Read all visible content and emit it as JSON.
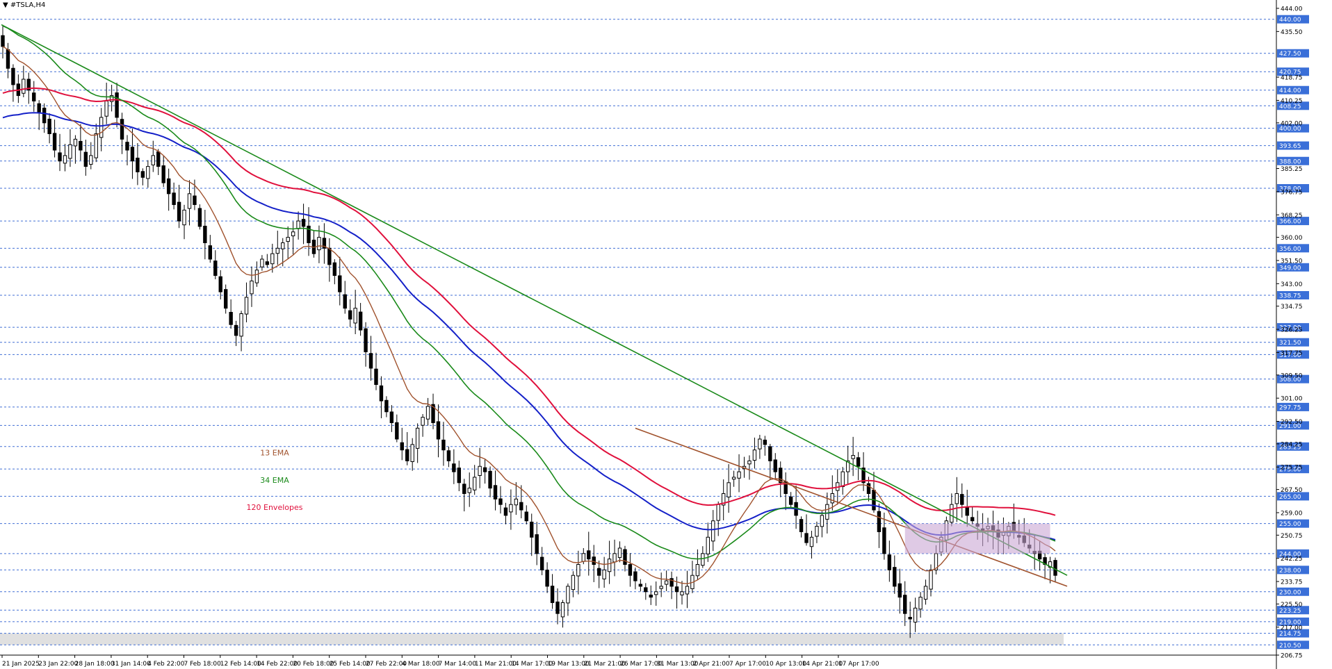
{
  "symbol_label": "#TSLA,H4",
  "colors": {
    "grid": "#2b5fd0",
    "price_tag_bg": "#3a6fd8",
    "ema13": "#a0522d",
    "ema34": "#1a8a1a",
    "envelope_upper": "#e0103c",
    "envelope_lower": "#1420c8",
    "trend_long": "#1a8a1a",
    "trend_short": "#a0522d",
    "zone_fill": "#c9a6d4",
    "bottom_band": "#d8d8d8"
  },
  "chart_data": {
    "type": "candlestick",
    "ylim": [
      206.75,
      444.0
    ],
    "price_tags": [
      440.0,
      427.5,
      420.75,
      414.0,
      408.25,
      400.0,
      393.65,
      388.0,
      378.0,
      366.0,
      356.0,
      349.0,
      338.75,
      327.0,
      321.5,
      317.0,
      308.0,
      297.75,
      291.0,
      283.25,
      275.0,
      265.0,
      255.0,
      244.0,
      238.0,
      230.0,
      223.25,
      219.0,
      214.75,
      210.5
    ],
    "minor_ticks": [
      444.0,
      435.5,
      418.75,
      410.25,
      402.0,
      385.25,
      376.75,
      368.25,
      360.0,
      351.5,
      343.0,
      334.75,
      326.25,
      317.75,
      309.5,
      301.0,
      292.5,
      284.25,
      275.75,
      267.5,
      259.0,
      250.75,
      242.25,
      233.75,
      225.5,
      217.0,
      206.75
    ],
    "x_labels": [
      "21 Jan 2025",
      "23 Jan 22:00",
      "28 Jan 18:00",
      "31 Jan 14:00",
      "4 Feb 22:00",
      "7 Feb 18:00",
      "12 Feb 14:00",
      "14 Feb 22:00",
      "20 Feb 18:00",
      "25 Feb 14:00",
      "27 Feb 22:00",
      "4 Mar 18:00",
      "7 Mar 14:00",
      "11 Mar 21:00",
      "14 Mar 17:00",
      "19 Mar 13:00",
      "21 Mar 21:00",
      "26 Mar 17:00",
      "31 Mar 13:00",
      "2 Apr 21:00",
      "7 Apr 17:00",
      "10 Apr 13:00",
      "14 Apr 21:00",
      "17 Apr 17:00"
    ],
    "close_path": [
      430,
      422,
      416,
      412,
      418,
      414,
      410,
      406,
      402,
      398,
      392,
      388,
      390,
      394,
      396,
      392,
      386,
      390,
      398,
      404,
      410,
      412,
      404,
      396,
      392,
      388,
      384,
      382,
      386,
      390,
      386,
      380,
      376,
      372,
      366,
      370,
      376,
      372,
      364,
      358,
      352,
      346,
      340,
      334,
      328,
      324,
      332,
      338,
      344,
      348,
      352,
      350,
      354,
      356,
      358,
      360,
      362,
      366,
      364,
      358,
      354,
      360,
      356,
      350,
      346,
      340,
      334,
      330,
      334,
      326,
      318,
      312,
      306,
      300,
      296,
      292,
      286,
      282,
      278,
      284,
      290,
      294,
      298,
      292,
      286,
      282,
      278,
      274,
      270,
      266,
      268,
      272,
      276,
      274,
      268,
      264,
      262,
      258,
      262,
      264,
      260,
      256,
      250,
      244,
      238,
      232,
      226,
      222,
      226,
      232,
      236,
      240,
      244,
      242,
      240,
      236,
      238,
      242,
      244,
      246,
      240,
      236,
      234,
      232,
      230,
      228,
      230,
      232,
      234,
      232,
      230,
      230,
      232,
      236,
      240,
      244,
      250,
      256,
      262,
      266,
      270,
      272,
      274,
      276,
      278,
      282,
      286,
      284,
      278,
      274,
      270,
      266,
      262,
      258,
      252,
      248,
      250,
      254,
      258,
      262,
      266,
      270,
      274,
      278,
      280,
      276,
      270,
      266,
      260,
      252,
      244,
      238,
      232,
      228,
      222,
      220,
      224,
      228,
      232,
      238,
      244,
      250,
      256,
      262,
      266,
      262,
      258,
      256,
      254,
      252,
      254,
      252,
      250,
      252,
      254,
      252,
      250,
      248,
      246,
      244,
      242,
      240,
      241,
      236
    ]
  },
  "annotations": [
    {
      "text": "13 EMA",
      "color": "#a0522d"
    },
    {
      "text": "34 EMA",
      "color": "#1a8a1a"
    },
    {
      "text": "120 Envelopes",
      "color": "#e0103c"
    }
  ]
}
